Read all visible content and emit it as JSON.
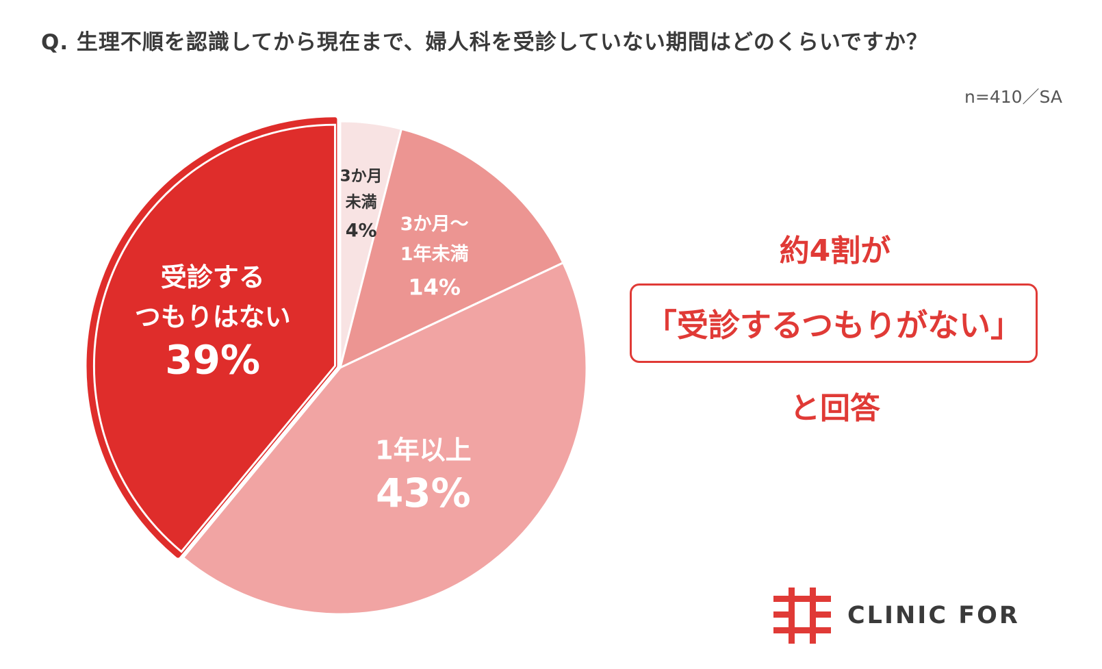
{
  "header": {
    "question": "Q. 生理不順を認識してから現在まで、婦人科を受診していない期間はどのくらいですか？",
    "sample": "n=410／SA"
  },
  "chart_data": {
    "type": "pie",
    "start_angle_deg": 0,
    "direction": "clockwise",
    "slices": [
      {
        "label_lines": [
          "3か月",
          "未満"
        ],
        "value": 4,
        "value_text": "4%",
        "color": "#f8e3e3",
        "text_color": "#333333",
        "highlight": false
      },
      {
        "label_lines": [
          "3か月～",
          "1年未満"
        ],
        "value": 14,
        "value_text": "14%",
        "color": "#ec9592",
        "text_color": "#ffffff",
        "highlight": false
      },
      {
        "label_lines": [
          "1年以上"
        ],
        "value": 43,
        "value_text": "43%",
        "color": "#f1a4a3",
        "text_color": "#ffffff",
        "highlight": false
      },
      {
        "label_lines": [
          "受診する",
          "つもりはない"
        ],
        "value": 39,
        "value_text": "39%",
        "color": "#df2d2b",
        "text_color": "#ffffff",
        "highlight": true
      }
    ]
  },
  "callout": {
    "top": "約4割が",
    "box": "「受診するつもりがない」",
    "bottom": "と回答",
    "color": "#e03a36"
  },
  "logo": {
    "text": "CLINIC FOR",
    "color": "#e03a36"
  }
}
